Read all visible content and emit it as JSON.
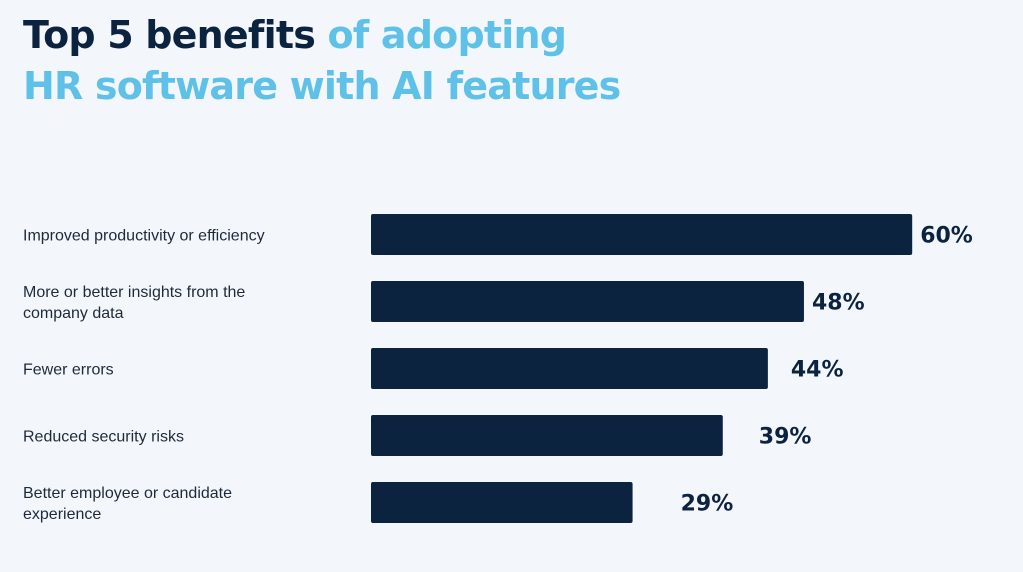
{
  "title": {
    "part1": "Top 5 benefits",
    "part2": "of adopting",
    "part3": "HR software with AI features"
  },
  "colors": {
    "background": "#f3f7fc",
    "title_dark": "#0c2340",
    "title_accent": "#5fc1e8",
    "bar": "#0c2340"
  },
  "chart_data": {
    "type": "bar",
    "orientation": "horizontal",
    "categories": [
      [
        "Improved productivity or efficiency"
      ],
      [
        "More or better insights from the",
        "company data"
      ],
      [
        "Fewer errors"
      ],
      [
        "Reduced security risks"
      ],
      [
        "Better employee or candidate",
        "experience"
      ]
    ],
    "values": [
      60,
      48,
      44,
      39,
      29
    ],
    "value_labels": [
      "60%",
      "48%",
      "44%",
      "39%",
      "29%"
    ],
    "unit": "%",
    "grid": false,
    "legend": "none"
  }
}
